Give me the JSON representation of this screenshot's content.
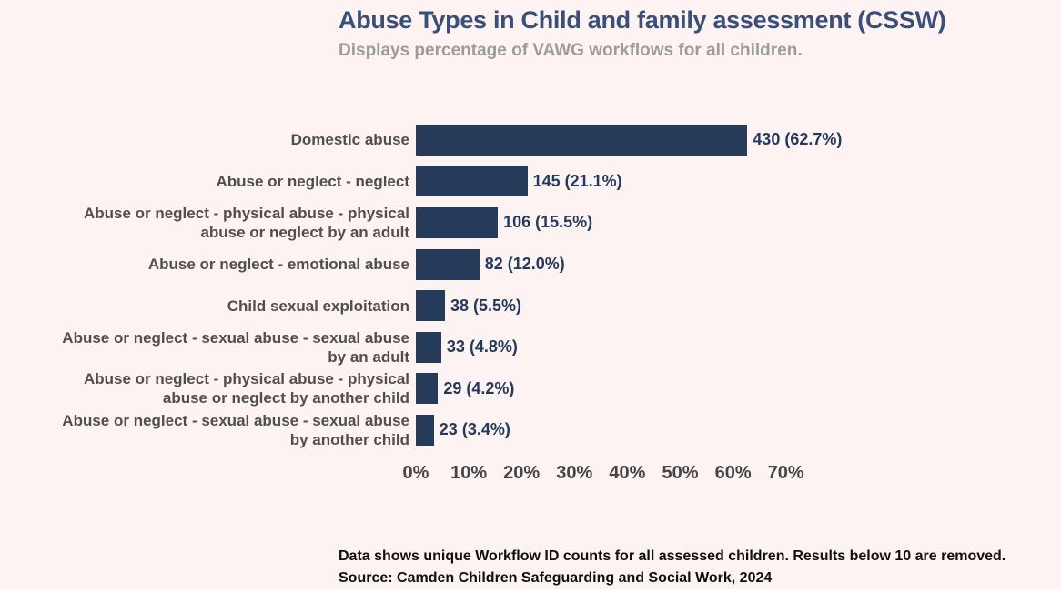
{
  "header": {
    "title": "Abuse Types in Child and family assessment (CSSW)",
    "subtitle": "Displays percentage of VAWG workflows for all children."
  },
  "chart_data": {
    "type": "bar",
    "orientation": "horizontal",
    "title": "Abuse Types in Child and family assessment (CSSW)",
    "subtitle": "Displays percentage of VAWG workflows for all children.",
    "categories": [
      "Domestic abuse",
      "Abuse or neglect - neglect",
      "Abuse or neglect - physical abuse - physical abuse or neglect by an adult",
      "Abuse or neglect - emotional abuse",
      "Child sexual exploitation",
      "Abuse or neglect - sexual abuse - sexual abuse by an adult",
      "Abuse or neglect - physical abuse - physical abuse or neglect by another child",
      "Abuse or neglect - sexual abuse - sexual abuse by another child"
    ],
    "values": [
      430,
      145,
      106,
      82,
      38,
      33,
      29,
      23
    ],
    "percents": [
      62.7,
      21.1,
      15.5,
      12.0,
      5.5,
      4.8,
      4.2,
      3.4
    ],
    "xlim": [
      0,
      70
    ],
    "x_ticks": [
      "0%",
      "10%",
      "20%",
      "30%",
      "40%",
      "50%",
      "60%",
      "70%"
    ],
    "grid": false,
    "legend": false,
    "bar_color": "#263a59",
    "background_color": "#fcf3f2",
    "rows": [
      {
        "label_lines": [
          "Domestic abuse"
        ],
        "value": 430,
        "percent": 62.7,
        "value_label": "430 (62.7%)"
      },
      {
        "label_lines": [
          "Abuse or neglect - neglect"
        ],
        "value": 145,
        "percent": 21.1,
        "value_label": "145 (21.1%)"
      },
      {
        "label_lines": [
          "Abuse or neglect - physical abuse - physical",
          "abuse or neglect by an adult"
        ],
        "value": 106,
        "percent": 15.5,
        "value_label": "106 (15.5%)"
      },
      {
        "label_lines": [
          "Abuse or neglect - emotional abuse"
        ],
        "value": 82,
        "percent": 12.0,
        "value_label": "82 (12.0%)"
      },
      {
        "label_lines": [
          "Child sexual exploitation"
        ],
        "value": 38,
        "percent": 5.5,
        "value_label": "38 (5.5%)"
      },
      {
        "label_lines": [
          "Abuse or neglect - sexual abuse - sexual abuse",
          "by an adult"
        ],
        "value": 33,
        "percent": 4.8,
        "value_label": "33 (4.8%)"
      },
      {
        "label_lines": [
          "Abuse or neglect - physical abuse - physical",
          "abuse or neglect by another child"
        ],
        "value": 29,
        "percent": 4.2,
        "value_label": "29 (4.2%)"
      },
      {
        "label_lines": [
          "Abuse or neglect - sexual abuse - sexual abuse",
          "by another child"
        ],
        "value": 23,
        "percent": 3.4,
        "value_label": "23 (3.4%)"
      }
    ]
  },
  "footer": {
    "line1": "Data shows unique Workflow ID counts for all assessed children. Results below 10 are removed.",
    "line2": "Source: Camden Children Safeguarding and Social Work, 2024"
  }
}
